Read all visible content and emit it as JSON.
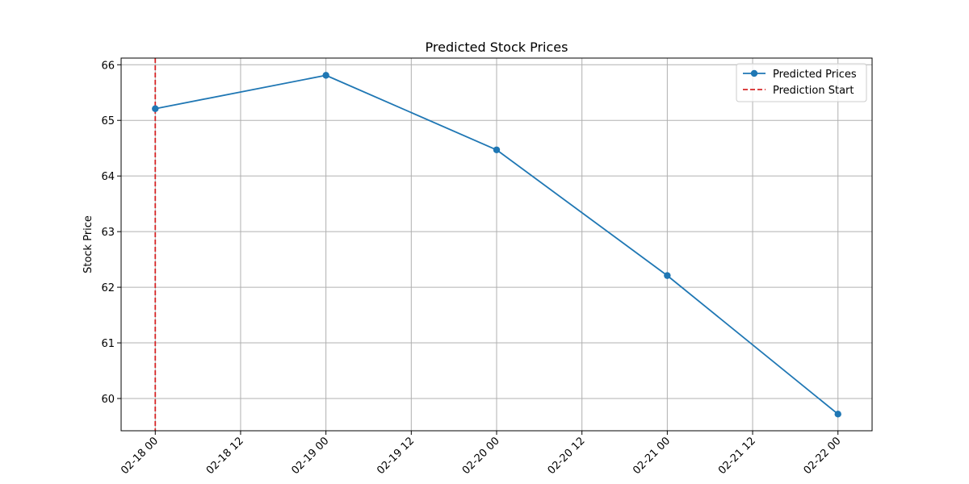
{
  "chart_data": {
    "type": "line",
    "title": "Predicted Stock Prices",
    "xlabel": "",
    "ylabel": "Stock Price",
    "x": [
      "2024-02-18T00:00",
      "2024-02-19T00:00",
      "2024-02-20T00:00",
      "2024-02-21T00:00",
      "2024-02-22T00:00"
    ],
    "series": [
      {
        "name": "Predicted Prices",
        "color": "#1f77b4",
        "style": "solid",
        "marker": "circle",
        "values": [
          65.21,
          65.81,
          64.47,
          62.21,
          59.72
        ]
      }
    ],
    "vertical_lines": [
      {
        "name": "Prediction Start",
        "x": "2024-02-18T00:00",
        "color": "#d62728",
        "style": "dashed"
      }
    ],
    "x_ticks": [
      {
        "value": "2024-02-18T00:00",
        "label": "02-18 00"
      },
      {
        "value": "2024-02-18T12:00",
        "label": "02-18 12"
      },
      {
        "value": "2024-02-19T00:00",
        "label": "02-19 00"
      },
      {
        "value": "2024-02-19T12:00",
        "label": "02-19 12"
      },
      {
        "value": "2024-02-20T00:00",
        "label": "02-20 00"
      },
      {
        "value": "2024-02-20T12:00",
        "label": "02-20 12"
      },
      {
        "value": "2024-02-21T00:00",
        "label": "02-21 00"
      },
      {
        "value": "2024-02-21T12:00",
        "label": "02-21 12"
      },
      {
        "value": "2024-02-22T00:00",
        "label": "02-22 00"
      }
    ],
    "y_ticks": [
      60,
      61,
      62,
      63,
      64,
      65,
      66
    ],
    "xlim": [
      "2024-02-17T19:12",
      "2024-02-22T04:48"
    ],
    "ylim": [
      59.42,
      66.12
    ],
    "grid": true,
    "legend_position": "top-right"
  }
}
